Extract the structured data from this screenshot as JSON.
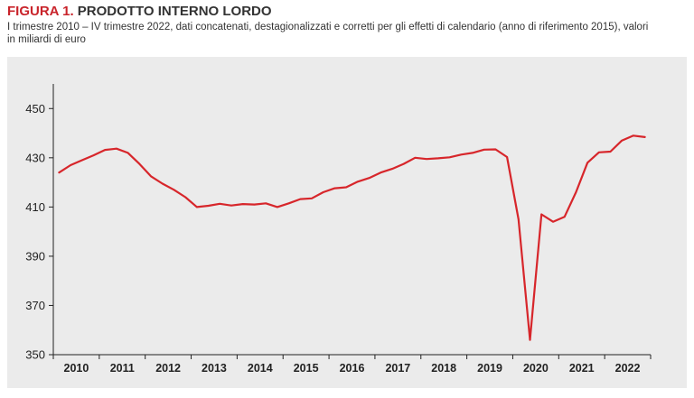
{
  "figure": {
    "number": "FIGURA 1.",
    "name": "PRODOTTO INTERNO LORDO",
    "subtitle_line1": "I trimestre 2010 – IV trimestre 2022, dati concatenati, destagionalizzati e corretti per gli effetti di calendario (anno di riferimento 2015), valori",
    "subtitle_line2": "in miliardi di euro"
  },
  "colors": {
    "line": "#d7262b",
    "panel": "#ebebeb",
    "title_accent": "#c9242b"
  },
  "chart_data": {
    "type": "line",
    "title": "PRODOTTO INTERNO LORDO",
    "xlabel": "",
    "ylabel": "",
    "ylim": [
      350,
      460
    ],
    "yticks": [
      350,
      370,
      390,
      410,
      430,
      450
    ],
    "year_labels": [
      "2010",
      "2011",
      "2012",
      "2013",
      "2014",
      "2015",
      "2016",
      "2017",
      "2018",
      "2019",
      "2020",
      "2021",
      "2022"
    ],
    "grid": false,
    "series": [
      {
        "values": [
          424.0,
          427.0,
          429.0,
          431.0,
          433.2,
          433.7,
          432.0,
          427.5,
          422.5,
          419.5,
          417.0,
          414.0,
          410.0,
          410.5,
          411.3,
          410.6,
          411.2,
          411.0,
          411.5,
          410.0,
          411.5,
          413.2,
          413.5,
          416.0,
          417.6,
          418.0,
          420.3,
          421.8,
          424.0,
          425.5,
          427.5,
          430.0,
          429.5,
          429.8,
          430.2,
          431.3,
          432.0,
          433.3,
          433.4,
          430.3,
          405.0,
          356.0,
          407.0,
          404.0,
          406.0,
          416.0,
          428.0,
          432.2,
          432.5,
          437.0,
          439.0,
          438.4
        ]
      }
    ]
  }
}
